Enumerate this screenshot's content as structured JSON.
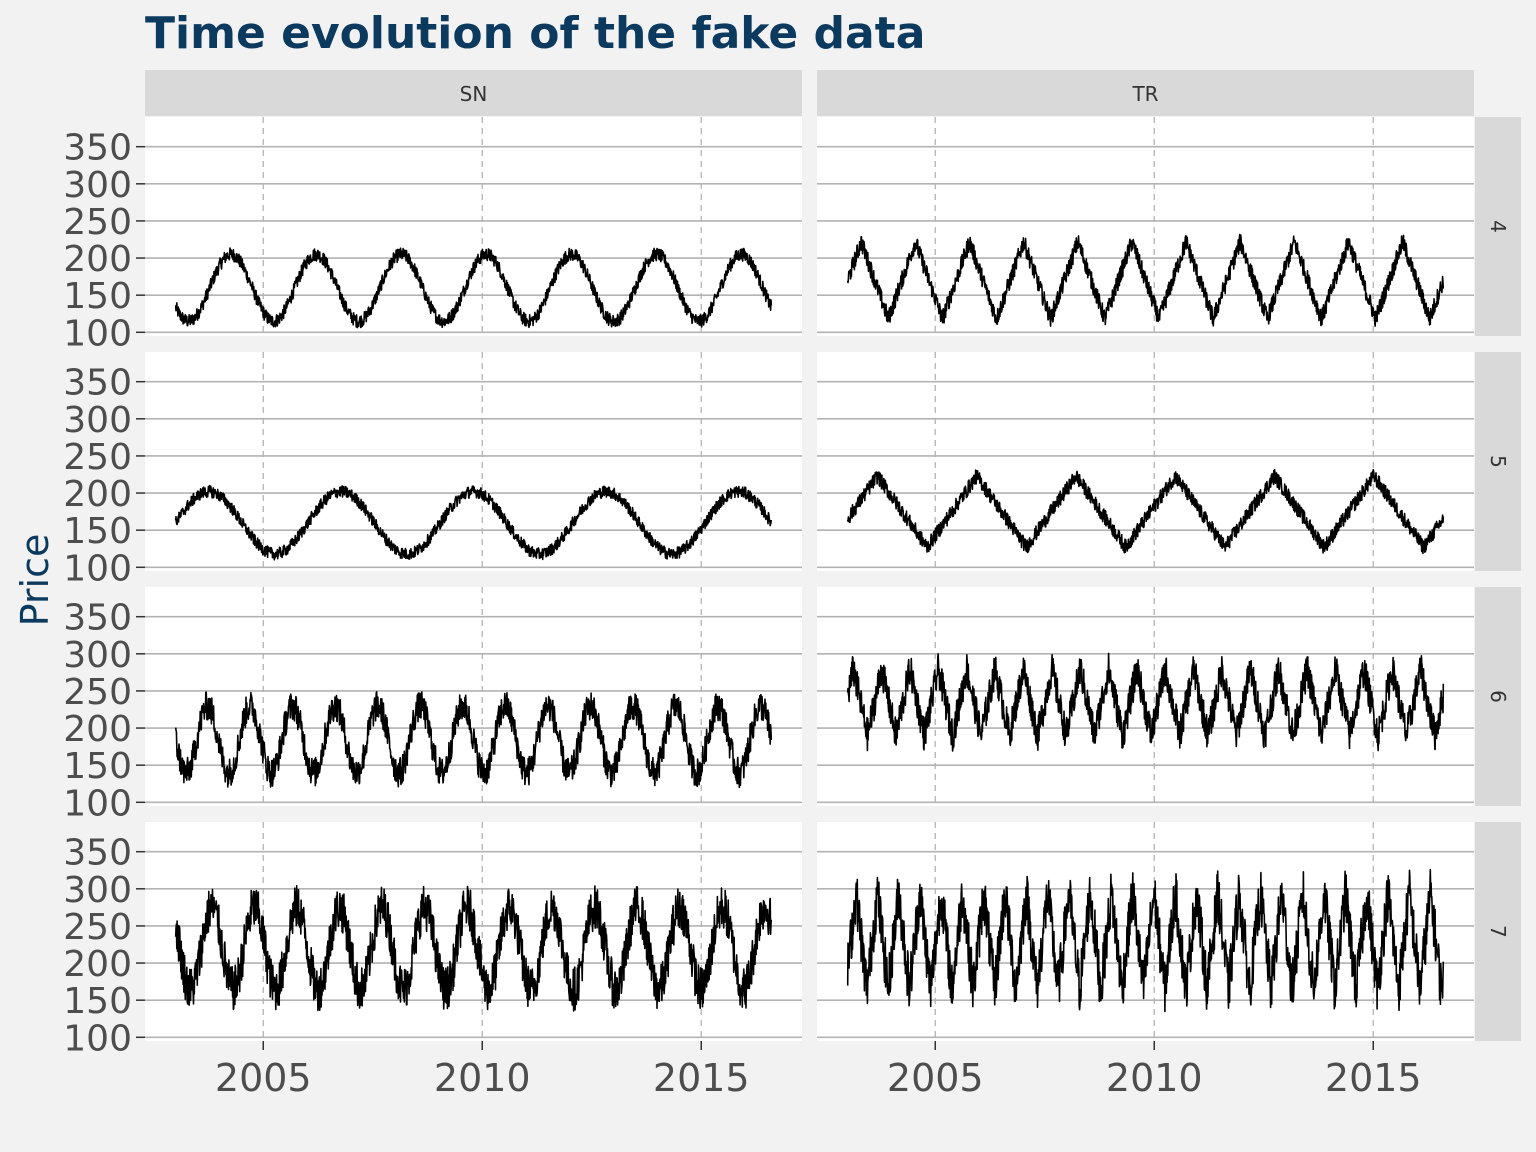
{
  "title": "Time evolution of the fake data",
  "ylabel": "Price",
  "chart_data": {
    "type": "line",
    "title": "Time evolution of the fake data",
    "xlabel": "",
    "ylabel": "Price",
    "xlim": [
      2002.3,
      2017.3
    ],
    "ylim": [
      95,
      390
    ],
    "yticks": [
      100,
      150,
      200,
      250,
      300,
      350
    ],
    "xticks": [
      2005,
      2010,
      2015
    ],
    "grid": true,
    "facet_columns": [
      "SN",
      "TR"
    ],
    "facet_rows": [
      "4",
      "5",
      "6",
      "7"
    ],
    "panels": [
      {
        "col": "SN",
        "row": "4",
        "wave": "sine",
        "x_start": 2003.0,
        "x_end": 2016.6,
        "center": 160,
        "amplitude": 45,
        "cycles": 7,
        "phase": 0.6,
        "noise": 9
      },
      {
        "col": "TR",
        "row": "4",
        "wave": "triangle",
        "x_start": 2003.0,
        "x_end": 2016.6,
        "center": 170,
        "amplitude": 52,
        "cycles": 11,
        "phase": 0.25,
        "noise": 12
      },
      {
        "col": "SN",
        "row": "5",
        "wave": "sine",
        "x_start": 2003.0,
        "x_end": 2016.6,
        "center": 160,
        "amplitude": 42,
        "cycles": 4.5,
        "phase": 0.0,
        "noise": 8
      },
      {
        "col": "TR",
        "row": "5",
        "wave": "triangle",
        "x_start": 2003.0,
        "x_end": 2016.6,
        "center": 175,
        "amplitude": 48,
        "cycles": 6,
        "phase": 0.2,
        "noise": 10
      },
      {
        "col": "SN",
        "row": "6",
        "wave": "sine",
        "x_start": 2003.0,
        "x_end": 2016.6,
        "center": 185,
        "amplitude": 45,
        "cycles": 14,
        "phase": 0.5,
        "noise": 20
      },
      {
        "col": "TR",
        "row": "6",
        "wave": "triangle",
        "x_start": 2003.0,
        "x_end": 2016.6,
        "center": 235,
        "amplitude": 45,
        "cycles": 21,
        "phase": 0.3,
        "noise": 22
      },
      {
        "col": "SN",
        "row": "7",
        "wave": "sine",
        "x_start": 2003.0,
        "x_end": 2016.6,
        "center": 220,
        "amplitude": 55,
        "cycles": 14,
        "phase": 0.4,
        "noise": 30
      },
      {
        "col": "TR",
        "row": "7",
        "wave": "triangle",
        "x_start": 2003.0,
        "x_end": 2016.6,
        "center": 230,
        "amplitude": 65,
        "cycles": 28,
        "phase": 0.1,
        "noise": 35
      }
    ]
  },
  "colors": {
    "background": "#f2f2f2",
    "panel": "#ffffff",
    "strip": "#d9d9d9",
    "title": "#0b3a5e",
    "line": "#000000",
    "grid_major": "#b3b3b3",
    "grid_vertical": "#b3b3b3"
  }
}
